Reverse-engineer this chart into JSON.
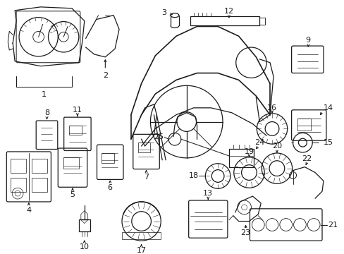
{
  "bg_color": "#ffffff",
  "line_color": "#1a1a1a",
  "figsize": [
    4.89,
    3.6
  ],
  "dpi": 100
}
